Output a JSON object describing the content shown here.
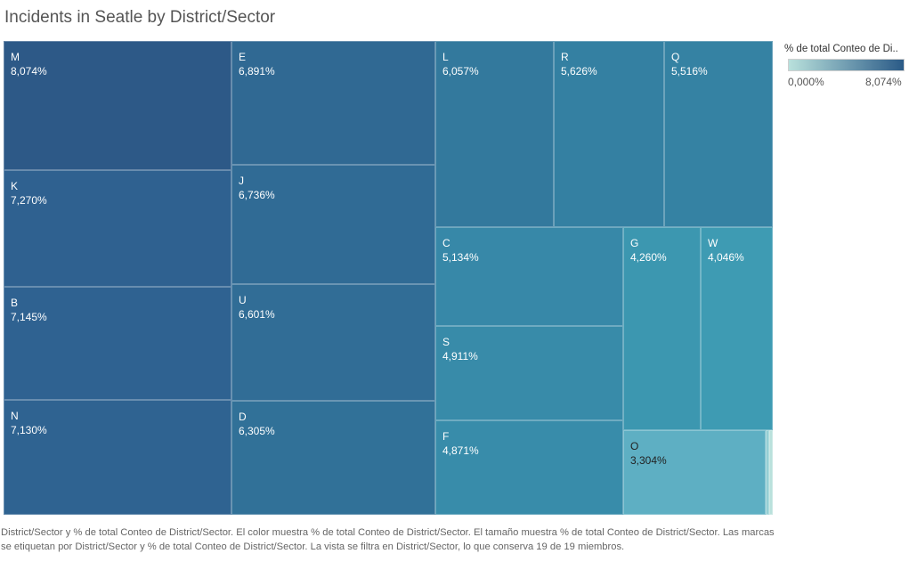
{
  "title": "Incidents in Seatle by District/Sector",
  "legend": {
    "title": "% de total Conteo de Di..",
    "min_label": "0,000%",
    "max_label": "8,074%",
    "color_low": "#b9e1dc",
    "color_high": "#2a5a87"
  },
  "caption": "District/Sector y % de total Conteo de District/Sector.  El color muestra % de total Conteo de District/Sector.  El tamaño muestra % de total Conteo de District/Sector.  Las marcas se etiquetan por District/Sector y % de total Conteo de District/Sector. La vista se filtra en District/Sector, lo que conserva 19 de 19 miembros.",
  "chart_data": {
    "type": "treemap",
    "title": "Incidents in Seatle by District/Sector",
    "color_measure": "% de total Conteo de District/Sector",
    "size_measure": "% de total Conteo de District/Sector",
    "items": [
      {
        "name": "M",
        "value": 8.074,
        "label": "8,074%",
        "color": "#2d5987",
        "text_color": "#ffffff"
      },
      {
        "name": "K",
        "value": 7.27,
        "label": "7,270%",
        "color": "#2f6190",
        "text_color": "#ffffff"
      },
      {
        "name": "B",
        "value": 7.145,
        "label": "7,145%",
        "color": "#2f6291",
        "text_color": "#ffffff"
      },
      {
        "name": "N",
        "value": 7.13,
        "label": "7,130%",
        "color": "#2f6391",
        "text_color": "#ffffff"
      },
      {
        "name": "E",
        "value": 6.891,
        "label": "6,891%",
        "color": "#306993",
        "text_color": "#ffffff"
      },
      {
        "name": "J",
        "value": 6.736,
        "label": "6,736%",
        "color": "#306b95",
        "text_color": "#ffffff"
      },
      {
        "name": "U",
        "value": 6.601,
        "label": "6,601%",
        "color": "#316d96",
        "text_color": "#ffffff"
      },
      {
        "name": "D",
        "value": 6.305,
        "label": "6,305%",
        "color": "#317198",
        "text_color": "#ffffff"
      },
      {
        "name": "L",
        "value": 6.057,
        "label": "6,057%",
        "color": "#33799d",
        "text_color": "#ffffff"
      },
      {
        "name": "R",
        "value": 5.626,
        "label": "5,626%",
        "color": "#3480a2",
        "text_color": "#ffffff"
      },
      {
        "name": "Q",
        "value": 5.516,
        "label": "5,516%",
        "color": "#3582a3",
        "text_color": "#ffffff"
      },
      {
        "name": "C",
        "value": 5.134,
        "label": "5,134%",
        "color": "#3788a8",
        "text_color": "#ffffff"
      },
      {
        "name": "S",
        "value": 4.911,
        "label": "4,911%",
        "color": "#388ba9",
        "text_color": "#ffffff"
      },
      {
        "name": "F",
        "value": 4.871,
        "label": "4,871%",
        "color": "#388caa",
        "text_color": "#ffffff"
      },
      {
        "name": "G",
        "value": 4.26,
        "label": "4,260%",
        "color": "#3c97b0",
        "text_color": "#ffffff"
      },
      {
        "name": "W",
        "value": 4.046,
        "label": "4,046%",
        "color": "#3e9bb3",
        "text_color": "#ffffff"
      },
      {
        "name": "O",
        "value": 3.304,
        "label": "3,304%",
        "color": "#5eafc3",
        "text_color": "#222222"
      },
      {
        "name": "",
        "value": 0.3,
        "label": "",
        "color": "#96cfd4",
        "text_color": "#222222"
      },
      {
        "name": "",
        "value": 0.1,
        "label": "",
        "color": "#b9e1dc",
        "text_color": "#222222"
      }
    ]
  }
}
